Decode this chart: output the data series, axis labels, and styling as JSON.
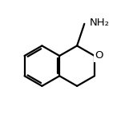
{
  "bg_color": "#ffffff",
  "line_color": "#000000",
  "line_width": 1.6,
  "text_color": "#000000",
  "nh2_label": "NH₂",
  "font_size": 9.5,
  "o_label": "O",
  "o_font_size": 9.5,
  "figsize": [
    1.66,
    1.53
  ],
  "dpi": 100,
  "xlim": [
    0,
    1
  ],
  "ylim": [
    0,
    1
  ]
}
